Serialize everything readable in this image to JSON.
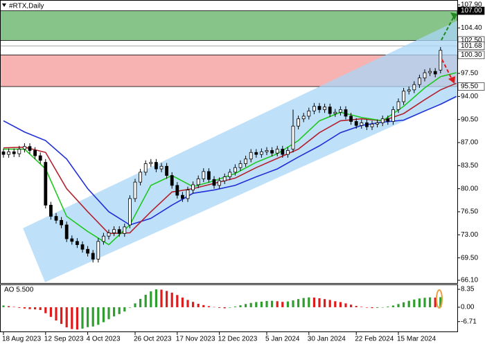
{
  "chart_data": [
    {
      "type": "candlestick",
      "title": "#RTX,Daily",
      "categories": [
        "18 Aug 2023",
        null,
        null,
        null,
        null,
        null,
        null,
        null,
        "12 Sep 2023",
        null,
        null,
        null,
        null,
        null,
        null,
        null,
        "4 Oct 2023",
        null,
        null,
        null,
        null,
        null,
        null,
        null,
        null,
        "26 Oct 2023",
        null,
        null,
        null,
        null,
        null,
        null,
        null,
        "17 Nov 2023",
        null,
        null,
        null,
        null,
        null,
        null,
        null,
        "12 Dec 2023",
        null,
        null,
        null,
        null,
        null,
        null,
        null,
        null,
        "5 Jan 2024",
        null,
        null,
        null,
        null,
        null,
        null,
        null,
        "30 Jan 2024",
        null,
        null,
        null,
        null,
        null,
        null,
        null,
        null,
        "22 Feb 2024",
        null,
        null,
        null,
        null,
        null,
        null,
        null,
        "15 Mar 2024",
        null,
        null,
        null,
        null,
        null,
        null,
        null,
        null
      ],
      "open": [
        85.6,
        85.2,
        85.6,
        85.3,
        86.0,
        86.4,
        85.8,
        85.0,
        84.0,
        77.5,
        75.8,
        75.2,
        74.5,
        72.4,
        72.0,
        71.5,
        70.8,
        70.2,
        69.3,
        72.0,
        72.8,
        73.3,
        73.8,
        73.2,
        74.5,
        78.5,
        81.0,
        82.5,
        83.8,
        84.0,
        83.0,
        83.4,
        82.0,
        80.5,
        79.0,
        78.5,
        79.8,
        80.6,
        81.5,
        82.6,
        81.4,
        80.5,
        81.2,
        81.8,
        82.5,
        83.2,
        83.8,
        84.5,
        85.5,
        85.2,
        85.6,
        85.8,
        85.4,
        86.0,
        85.2,
        86.0,
        89.5,
        90.6,
        91.0,
        91.8,
        92.5,
        92.0,
        92.4,
        91.4,
        91.6,
        92.0,
        91.0,
        90.2,
        89.6,
        90.0,
        89.4,
        89.8,
        90.0,
        90.6,
        90.2,
        92.0,
        93.2,
        94.8,
        95.0,
        95.8,
        96.8,
        97.6,
        97.8,
        98.0
      ],
      "high": [
        86.1,
        86.1,
        86.1,
        86.5,
        86.9,
        86.9,
        86.3,
        85.5,
        84.5,
        78.0,
        76.3,
        75.7,
        75.0,
        72.9,
        72.5,
        72.0,
        71.3,
        70.7,
        72.5,
        73.3,
        73.8,
        74.3,
        74.3,
        74.7,
        79.0,
        81.5,
        83.0,
        84.3,
        84.5,
        84.5,
        83.9,
        83.9,
        82.5,
        81.0,
        79.5,
        80.3,
        81.1,
        82.0,
        83.1,
        83.1,
        81.9,
        81.7,
        82.3,
        83.0,
        83.7,
        84.3,
        85.0,
        86.0,
        86.0,
        86.1,
        86.3,
        86.3,
        86.5,
        86.5,
        86.3,
        92.0,
        91.1,
        91.5,
        92.3,
        93.0,
        93.0,
        92.9,
        92.9,
        92.1,
        92.5,
        92.5,
        91.5,
        90.7,
        90.5,
        90.5,
        90.3,
        90.5,
        91.1,
        91.1,
        92.5,
        93.7,
        95.3,
        95.5,
        96.3,
        97.3,
        98.1,
        98.3,
        98.3,
        101.5
      ],
      "low": [
        84.7,
        84.7,
        84.8,
        84.8,
        85.5,
        85.3,
        84.5,
        83.8,
        77.0,
        75.3,
        74.7,
        74.0,
        71.9,
        71.5,
        71.0,
        70.3,
        69.7,
        68.8,
        68.8,
        71.5,
        72.3,
        72.8,
        72.7,
        72.7,
        74.0,
        78.0,
        80.5,
        82.0,
        83.3,
        82.5,
        82.5,
        81.5,
        80.0,
        78.5,
        78.0,
        78.0,
        79.3,
        80.1,
        81.0,
        80.9,
        80.0,
        80.0,
        80.7,
        81.3,
        82.0,
        82.7,
        83.3,
        84.0,
        84.7,
        84.7,
        85.1,
        84.9,
        84.9,
        84.7,
        84.7,
        85.5,
        89.0,
        90.1,
        90.5,
        91.3,
        91.5,
        91.5,
        90.9,
        90.9,
        91.1,
        90.5,
        89.7,
        89.1,
        89.1,
        88.9,
        88.9,
        89.3,
        89.5,
        89.7,
        89.7,
        91.5,
        92.7,
        94.3,
        94.5,
        95.3,
        96.3,
        97.1,
        96.9,
        97.5
      ],
      "close": [
        85.2,
        85.6,
        85.3,
        86.0,
        86.4,
        85.8,
        85.0,
        84.3,
        77.5,
        75.8,
        75.2,
        74.5,
        72.4,
        72.0,
        71.5,
        70.8,
        70.2,
        69.3,
        72.0,
        72.8,
        73.3,
        73.8,
        73.2,
        74.2,
        78.5,
        81.0,
        82.5,
        83.8,
        84.0,
        83.0,
        83.4,
        82.0,
        80.5,
        79.0,
        78.5,
        79.8,
        80.6,
        81.5,
        82.6,
        81.4,
        80.5,
        81.2,
        81.8,
        82.5,
        83.2,
        83.8,
        84.5,
        85.5,
        85.2,
        85.6,
        85.8,
        85.4,
        86.0,
        85.2,
        85.8,
        89.5,
        90.6,
        91.0,
        91.8,
        92.5,
        92.0,
        92.4,
        91.4,
        91.6,
        92.0,
        91.0,
        90.2,
        89.6,
        90.0,
        89.4,
        89.8,
        90.0,
        90.6,
        90.2,
        92.0,
        93.2,
        94.8,
        95.0,
        95.8,
        96.8,
        97.6,
        97.8,
        97.4,
        101.0
      ],
      "up_color": "#ffffff",
      "down_color": "#000000",
      "ylim": [
        66.1,
        107.9
      ],
      "yticks": [
        {
          "value": 107.9,
          "label": "107.90"
        },
        {
          "value": 104.4,
          "label": "104.40"
        },
        {
          "value": 97.5,
          "label": "97.50"
        },
        {
          "value": 94.0,
          "label": "94.00"
        },
        {
          "value": 90.5,
          "label": "90.50"
        },
        {
          "value": 87.0,
          "label": "87.00"
        },
        {
          "value": 83.5,
          "label": "83.50"
        },
        {
          "value": 80.0,
          "label": "80.00"
        },
        {
          "value": 76.5,
          "label": "76.50"
        },
        {
          "value": 73.0,
          "label": "73.00"
        },
        {
          "value": 69.5,
          "label": "69.50"
        },
        {
          "value": 66.1,
          "label": "66.10"
        }
      ],
      "series": [
        {
          "color": "#1f2fd6",
          "x": [
            0,
            4,
            8,
            12,
            16,
            20,
            24,
            28,
            32,
            36,
            40,
            44,
            48,
            52,
            56,
            60,
            64,
            68,
            72,
            76,
            80,
            83,
            86
          ],
          "values": [
            90.3,
            88.6,
            87.3,
            84.5,
            80.0,
            76.5,
            74.5,
            75.5,
            77.5,
            79.3,
            79.8,
            80.5,
            81.8,
            83.0,
            84.8,
            86.5,
            88.5,
            89.6,
            90.1,
            90.4,
            91.8,
            92.8,
            94.0
          ]
        },
        {
          "color": "#b3202c",
          "x": [
            0,
            4,
            8,
            12,
            16,
            20,
            24,
            28,
            32,
            36,
            40,
            44,
            48,
            52,
            56,
            60,
            64,
            68,
            72,
            76,
            80,
            83,
            86
          ],
          "values": [
            86.2,
            86.3,
            85.5,
            80.0,
            76.5,
            73.2,
            73.3,
            76.5,
            79.5,
            80.0,
            80.8,
            81.6,
            83.2,
            84.6,
            86.0,
            88.5,
            90.3,
            90.6,
            90.3,
            91.4,
            93.5,
            95.0,
            96.0
          ]
        },
        {
          "color": "#1ec81e",
          "x": [
            0,
            4,
            8,
            12,
            16,
            20,
            24,
            28,
            32,
            36,
            40,
            44,
            48,
            52,
            56,
            60,
            64,
            68,
            72,
            76,
            80,
            83,
            86
          ],
          "values": [
            86.0,
            86.0,
            83.0,
            75.8,
            73.5,
            71.5,
            74.5,
            80.5,
            82.0,
            80.3,
            81.2,
            82.3,
            84.0,
            85.3,
            87.3,
            90.3,
            91.6,
            90.8,
            90.3,
            92.5,
            95.3,
            97.0,
            97.6
          ]
        }
      ],
      "channel": {
        "color": "#a9d5f7",
        "upper": {
          "x": [
            3.7,
            86.2
          ],
          "values": [
            74.0,
            105.5
          ]
        },
        "lower": {
          "x": [
            7.9,
            86.2
          ],
          "values": [
            65.8,
            93.9
          ]
        }
      },
      "zones": [
        {
          "color": "#86c48a",
          "top": {
            "value": 107.0,
            "label": "107.00",
            "highlight": true
          },
          "bottom": {
            "value": 102.5,
            "label": "102.50"
          }
        },
        {
          "color": "#f7b2b2",
          "top": {
            "value": 100.3,
            "label": "100.30"
          },
          "bottom": {
            "value": 95.5,
            "label": "95.50"
          }
        }
      ],
      "lines": [
        {
          "value": 101.68,
          "label": "101.68"
        }
      ]
    },
    {
      "type": "bar",
      "title": "AO 5.500",
      "values": [
        0.8,
        0.5,
        0.2,
        -0.3,
        -0.6,
        -0.9,
        -1.0,
        -1.3,
        -2.8,
        -4.5,
        -6.2,
        -7.8,
        -9.4,
        -10.2,
        -10.4,
        -10.0,
        -9.3,
        -9.0,
        -8.2,
        -7.0,
        -5.6,
        -4.3,
        -3.2,
        -2.0,
        -0.2,
        1.8,
        3.9,
        5.8,
        7.4,
        8.35,
        8.2,
        7.6,
        6.8,
        5.7,
        4.5,
        3.4,
        2.5,
        1.6,
        1.0,
        0.5,
        0.1,
        -0.3,
        -0.5,
        -0.2,
        0.3,
        0.9,
        1.5,
        2.0,
        2.4,
        2.6,
        2.9,
        3.0,
        2.8,
        2.5,
        2.7,
        3.2,
        3.8,
        4.3,
        4.6,
        4.5,
        4.2,
        3.8,
        3.4,
        2.8,
        2.4,
        1.8,
        1.2,
        0.6,
        0.2,
        -0.2,
        -0.4,
        -0.3,
        0.0,
        0.3,
        0.8,
        1.5,
        2.3,
        3.0,
        3.6,
        4.1,
        4.4,
        4.6,
        4.5,
        4.7
      ],
      "up_color": "#2e9e2e",
      "down_color": "#e01b1b",
      "ylim": [
        -11,
        10
      ],
      "yticks": [
        8.35,
        {
          "value": 0,
          "label": "0.00"
        },
        -6.71
      ]
    }
  ]
}
